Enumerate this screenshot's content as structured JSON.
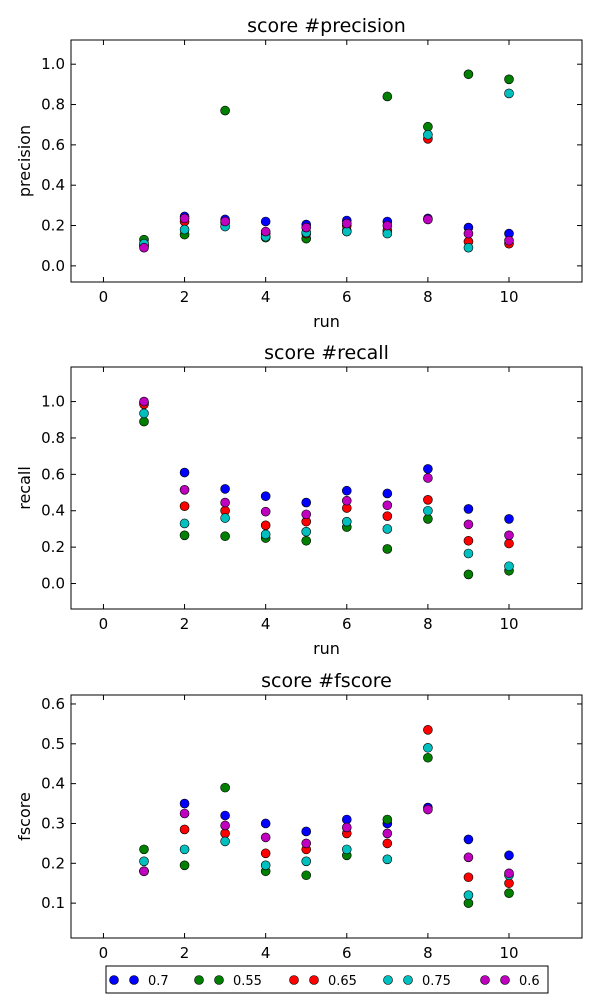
{
  "chart_data": [
    {
      "type": "scatter",
      "title": "score #precision",
      "xlabel": "run",
      "ylabel": "precision",
      "xlim": [
        -0.8,
        11.8
      ],
      "ylim": [
        -0.08,
        1.12
      ],
      "xticks": [
        "0",
        "2",
        "4",
        "6",
        "8",
        "10"
      ],
      "yticks": [
        "0.0",
        "0.2",
        "0.4",
        "0.6",
        "0.8",
        "1.0"
      ],
      "x": [
        1,
        2,
        3,
        4,
        5,
        6,
        7,
        8,
        9,
        10
      ],
      "series": [
        {
          "name": "0.7",
          "color": "#0000ff",
          "values": [
            0.1,
            0.245,
            0.23,
            0.22,
            0.205,
            0.225,
            0.22,
            0.235,
            0.19,
            0.16
          ]
        },
        {
          "name": "0.55",
          "color": "#007f00",
          "values": [
            0.13,
            0.155,
            0.77,
            0.14,
            0.135,
            0.175,
            0.84,
            0.69,
            0.95,
            0.925
          ]
        },
        {
          "name": "0.65",
          "color": "#ff0000",
          "values": [
            0.1,
            0.22,
            0.215,
            0.16,
            0.16,
            0.2,
            0.175,
            0.63,
            0.12,
            0.11
          ]
        },
        {
          "name": "0.75",
          "color": "#00bfbf",
          "values": [
            0.11,
            0.18,
            0.195,
            0.145,
            0.165,
            0.17,
            0.16,
            0.65,
            0.09,
            0.855
          ]
        },
        {
          "name": "0.6",
          "color": "#bf00bf",
          "values": [
            0.09,
            0.235,
            0.22,
            0.17,
            0.19,
            0.21,
            0.2,
            0.23,
            0.16,
            0.125
          ]
        }
      ]
    },
    {
      "type": "scatter",
      "title": "score #recall",
      "xlabel": "run",
      "ylabel": "recall",
      "xlim": [
        -0.8,
        11.8
      ],
      "ylim": [
        -0.14,
        1.19
      ],
      "xticks": [
        "0",
        "2",
        "4",
        "6",
        "8",
        "10"
      ],
      "yticks": [
        "0.0",
        "0.2",
        "0.4",
        "0.6",
        "0.8",
        "1.0"
      ],
      "x": [
        1,
        2,
        3,
        4,
        5,
        6,
        7,
        8,
        9,
        10
      ],
      "series": [
        {
          "name": "0.7",
          "color": "#0000ff",
          "values": [
            0.995,
            0.61,
            0.52,
            0.48,
            0.445,
            0.51,
            0.495,
            0.63,
            0.41,
            0.355
          ]
        },
        {
          "name": "0.55",
          "color": "#007f00",
          "values": [
            0.89,
            0.265,
            0.26,
            0.25,
            0.235,
            0.31,
            0.19,
            0.355,
            0.05,
            0.07
          ]
        },
        {
          "name": "0.65",
          "color": "#ff0000",
          "values": [
            0.985,
            0.425,
            0.4,
            0.32,
            0.34,
            0.415,
            0.37,
            0.46,
            0.235,
            0.22
          ]
        },
        {
          "name": "0.75",
          "color": "#00bfbf",
          "values": [
            0.935,
            0.33,
            0.36,
            0.27,
            0.285,
            0.34,
            0.3,
            0.4,
            0.165,
            0.095
          ]
        },
        {
          "name": "0.6",
          "color": "#bf00bf",
          "values": [
            1.0,
            0.515,
            0.445,
            0.395,
            0.38,
            0.455,
            0.43,
            0.58,
            0.325,
            0.265
          ]
        }
      ]
    },
    {
      "type": "scatter",
      "title": "score #fscore",
      "xlabel": "",
      "ylabel": "fscore",
      "xlim": [
        -0.8,
        11.8
      ],
      "ylim": [
        0.0125,
        0.6225
      ],
      "xticks": [
        "0",
        "2",
        "4",
        "6",
        "8",
        "10"
      ],
      "yticks": [
        "0.1",
        "0.2",
        "0.3",
        "0.4",
        "0.5",
        "0.6"
      ],
      "x": [
        1,
        2,
        3,
        4,
        5,
        6,
        7,
        8,
        9,
        10
      ],
      "series": [
        {
          "name": "0.7",
          "color": "#0000ff",
          "values": [
            0.18,
            0.35,
            0.32,
            0.3,
            0.28,
            0.31,
            0.3,
            0.34,
            0.26,
            0.22
          ]
        },
        {
          "name": "0.55",
          "color": "#007f00",
          "values": [
            0.235,
            0.195,
            0.39,
            0.18,
            0.17,
            0.22,
            0.31,
            0.465,
            0.1,
            0.125
          ]
        },
        {
          "name": "0.65",
          "color": "#ff0000",
          "values": [
            0.18,
            0.285,
            0.275,
            0.225,
            0.235,
            0.275,
            0.25,
            0.535,
            0.165,
            0.15
          ]
        },
        {
          "name": "0.75",
          "color": "#00bfbf",
          "values": [
            0.205,
            0.235,
            0.255,
            0.195,
            0.205,
            0.235,
            0.21,
            0.49,
            0.12,
            0.17
          ]
        },
        {
          "name": "0.6",
          "color": "#bf00bf",
          "values": [
            0.18,
            0.325,
            0.295,
            0.265,
            0.25,
            0.29,
            0.275,
            0.335,
            0.215,
            0.175
          ]
        }
      ]
    }
  ],
  "legend": {
    "placement": "bottom-center",
    "entries": [
      {
        "label": "0.7",
        "color": "#0000ff"
      },
      {
        "label": "0.55",
        "color": "#007f00"
      },
      {
        "label": "0.65",
        "color": "#ff0000"
      },
      {
        "label": "0.75",
        "color": "#00bfbf"
      },
      {
        "label": "0.6",
        "color": "#bf00bf"
      }
    ]
  }
}
